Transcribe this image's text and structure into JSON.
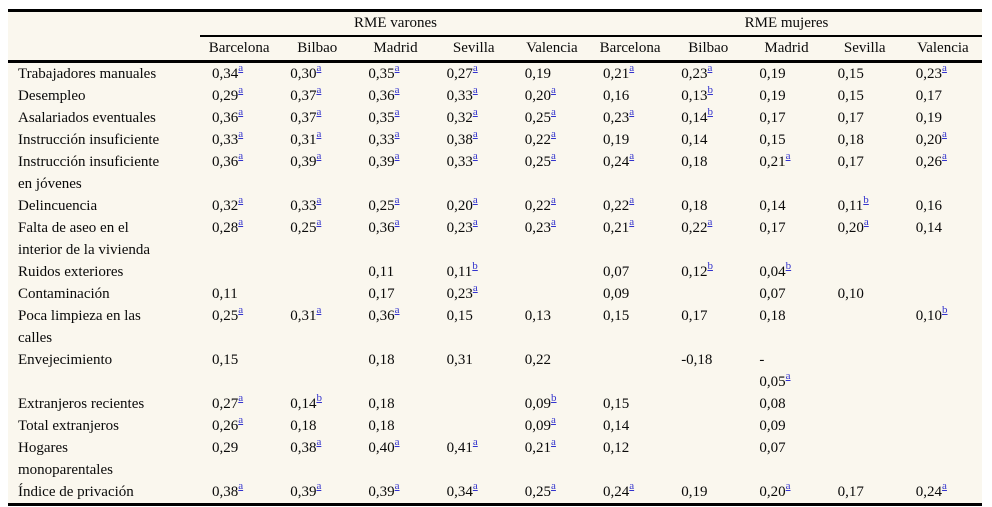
{
  "table": {
    "group_headers": [
      "RME varones",
      "RME mujeres"
    ],
    "city_headers": [
      "Barcelona",
      "Bilbao",
      "Madrid",
      "Sevilla",
      "Valencia",
      "Barcelona",
      "Bilbao",
      "Madrid",
      "Sevilla",
      "Valencia"
    ],
    "footnote_markers": [
      "a",
      "b"
    ],
    "rows": [
      {
        "label": "Trabajadores manuales",
        "cells": [
          "0,34^a",
          "0,30^a",
          "0,35^a",
          "0,27^a",
          "0,19",
          "0,21^a",
          "0,23^a",
          "0,19",
          "0,15",
          "0,23^a"
        ]
      },
      {
        "label": "Desempleo",
        "cells": [
          "0,29^a",
          "0,37^a",
          "0,36^a",
          "0,33^a",
          "0,20^a",
          "0,16",
          "0,13^b",
          "0,19",
          "0,15",
          "0,17"
        ]
      },
      {
        "label": "Asalariados eventuales",
        "cells": [
          "0,36^a",
          "0,37^a",
          "0,35^a",
          "0,32^a",
          "0,25^a",
          "0,23^a",
          "0,14^b",
          "0,17",
          "0,17",
          "0,19"
        ]
      },
      {
        "label": "Instrucción insuficiente",
        "cells": [
          "0,33^a",
          "0,31^a",
          "0,33^a",
          "0,38^a",
          "0,22^a",
          "0,19",
          "0,14",
          "0,15",
          "0,18",
          "0,20^a"
        ]
      },
      {
        "label": "Instrucción insuficiente\nen jóvenes",
        "cells": [
          "0,36^a",
          "0,39^a",
          "0,39^a",
          "0,33^a",
          "0,25^a",
          "0,24^a",
          "0,18",
          "0,21^a",
          "0,17",
          "0,26^a"
        ]
      },
      {
        "label": "Delincuencia",
        "cells": [
          "0,32^a",
          "0,33^a",
          "0,25^a",
          "0,20^a",
          "0,22^a",
          "0,22^a",
          "0,18",
          "0,14",
          "0,11^b",
          "0,16"
        ]
      },
      {
        "label": "Falta de aseo en el\ninterior de la vivienda",
        "cells": [
          "0,28^a",
          "0,25^a",
          "0,36^a",
          "0,23^a",
          "0,23^a",
          "0,21^a",
          "0,22^a",
          "0,17",
          "0,20^a",
          "0,14"
        ]
      },
      {
        "label": "Ruidos exteriores",
        "cells": [
          "",
          "",
          "0,11",
          "0,11^b",
          "",
          "0,07",
          "0,12^b",
          "0,04^b",
          "",
          ""
        ]
      },
      {
        "label": "Contaminación",
        "cells": [
          "0,11",
          "",
          "0,17",
          "0,23^a",
          "",
          "0,09",
          "",
          "0,07",
          "0,10",
          ""
        ]
      },
      {
        "label": "Poca limpieza en las\ncalles",
        "cells": [
          "0,25^a",
          "0,31^a",
          "0,36^a",
          "0,15",
          "0,13",
          "0,15",
          "0,17",
          "0,18",
          "",
          "0,10^b"
        ]
      },
      {
        "label": "Envejecimiento",
        "cells": [
          "0,15",
          "",
          "0,18",
          "0,31",
          "0,22",
          "",
          "-0,18",
          "-\n0,05^a",
          "",
          ""
        ]
      },
      {
        "label": "Extranjeros recientes",
        "cells": [
          "0,27^a",
          "0,14^b",
          "0,18",
          "",
          "0,09^b",
          "0,15",
          "",
          "0,08",
          "",
          ""
        ]
      },
      {
        "label": "Total extranjeros",
        "cells": [
          "0,26^a",
          "0,18",
          "0,18",
          "",
          "0,09^a",
          "0,14",
          "",
          "0,09",
          "",
          ""
        ]
      },
      {
        "label": "Hogares\nmonoparentales",
        "cells": [
          "0,29",
          "0,38^a",
          "0,40^a",
          "0,41^a",
          "0,21^a",
          "0,12",
          "",
          "0,07",
          "",
          ""
        ]
      },
      {
        "label": "Índice de privación",
        "cells": [
          "0,38^a",
          "0,39^a",
          "0,39^a",
          "0,34^a",
          "0,25^a",
          "0,24^a",
          "0,19",
          "0,20^a",
          "0,17",
          "0,24^a"
        ]
      }
    ]
  },
  "colors": {
    "table_background": "#faf7ee",
    "border": "#000000",
    "footnote_link": "#3232cd",
    "text": "#0a0a0a"
  }
}
